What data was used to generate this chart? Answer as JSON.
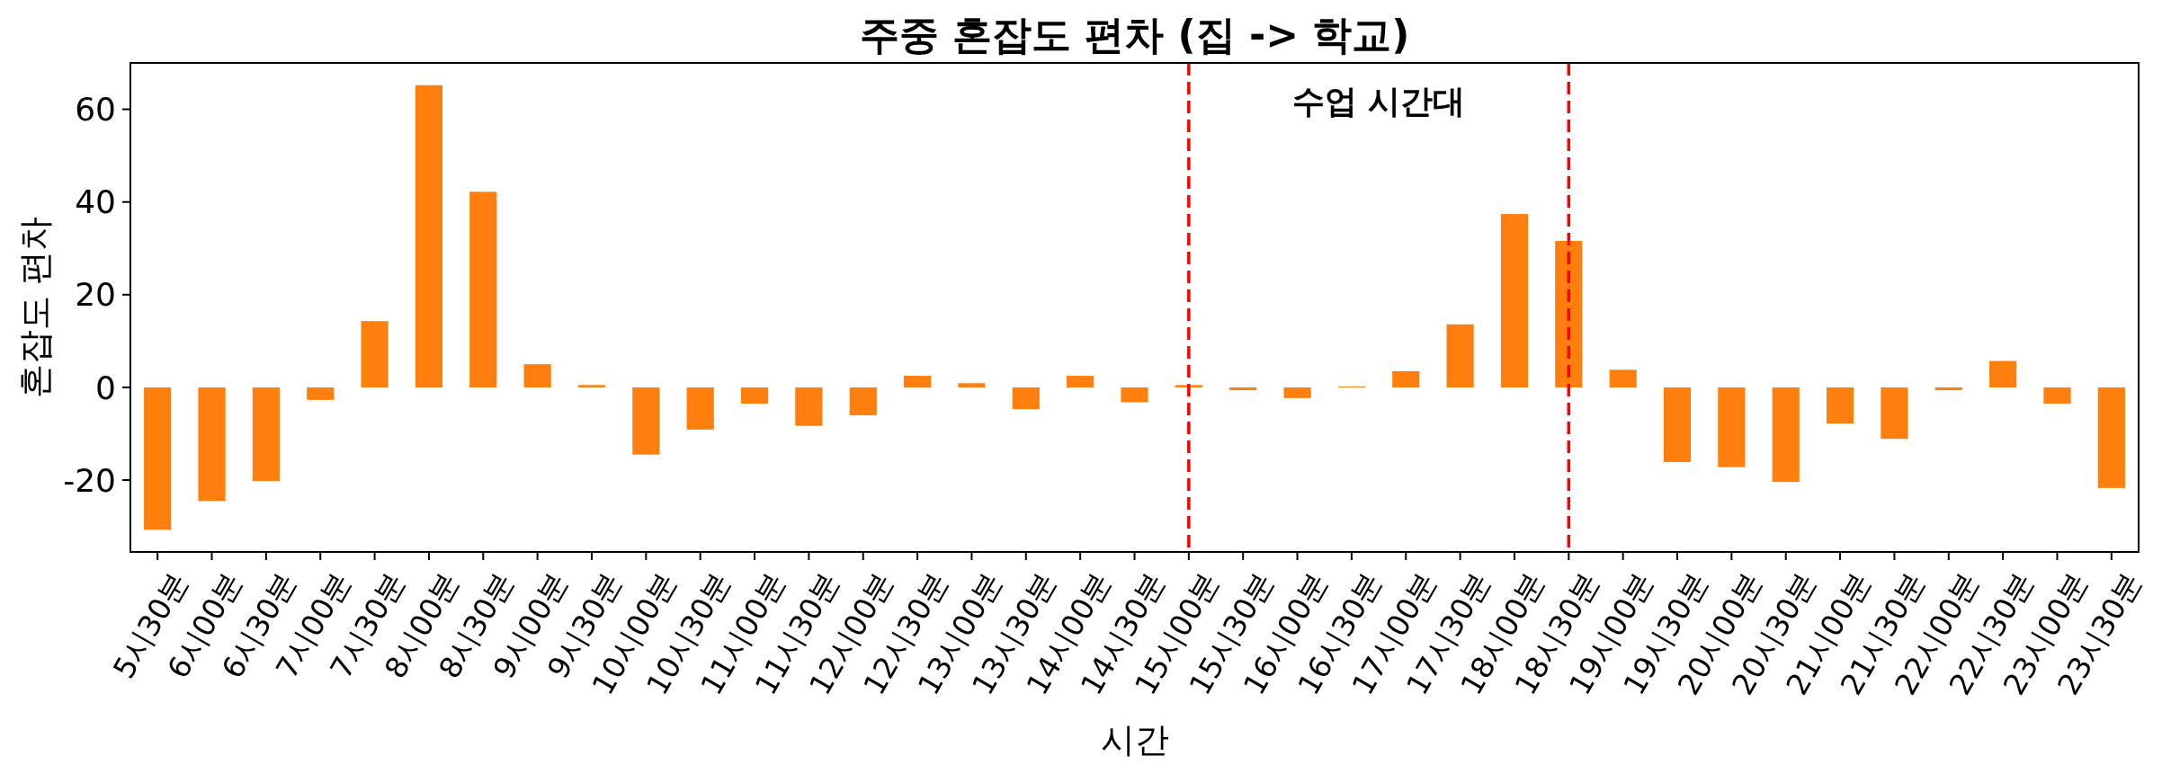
{
  "chart_data": {
    "type": "bar",
    "title": "주중 혼잡도 편차 (집 -> 학교)",
    "xlabel": "시간",
    "ylabel": "혼잡도 편차",
    "categories": [
      "5시30분",
      "6시00분",
      "6시30분",
      "7시00분",
      "7시30분",
      "8시00분",
      "8시30분",
      "9시00분",
      "9시30분",
      "10시00분",
      "10시30분",
      "11시00분",
      "11시30분",
      "12시00분",
      "12시30분",
      "13시00분",
      "13시30분",
      "14시00분",
      "14시30분",
      "15시00분",
      "15시30분",
      "16시00분",
      "16시30분",
      "17시00분",
      "17시30분",
      "18시00분",
      "18시30분",
      "19시00분",
      "19시30분",
      "20시00분",
      "20시30분",
      "21시00분",
      "21시30분",
      "22시00분",
      "22시30분",
      "23시00분",
      "23시30분"
    ],
    "values": [
      -30.7,
      -24.5,
      -20.2,
      -2.7,
      14.3,
      65.2,
      42.2,
      5.0,
      0.5,
      -14.5,
      -9.1,
      -3.5,
      -8.3,
      -6.0,
      2.5,
      0.9,
      -4.7,
      2.5,
      -3.2,
      0.5,
      -0.6,
      -2.3,
      0.2,
      3.5,
      13.6,
      37.4,
      31.6,
      3.8,
      -16.1,
      -17.2,
      -20.4,
      -7.8,
      -11.1,
      -0.6,
      5.7,
      -3.5,
      -21.7
    ],
    "color": "#ff7f0e",
    "ylim": [
      -35.5,
      70
    ],
    "yticks": [
      -20,
      0,
      20,
      40,
      60
    ],
    "grid": false,
    "ref_lines": [
      {
        "axis": "x",
        "value": "15시00분",
        "color": "#ff0000",
        "line_style": "dashed"
      },
      {
        "axis": "x",
        "value": "18시30분",
        "color": "#ff0000",
        "line_style": "dashed"
      }
    ],
    "annotations": [
      "수업 시간대"
    ]
  }
}
